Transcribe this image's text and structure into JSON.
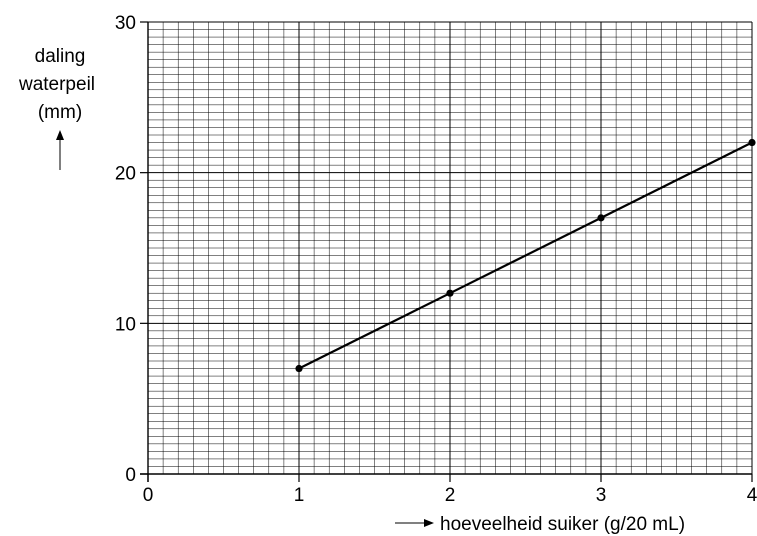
{
  "chart_data": {
    "type": "line",
    "title": "",
    "ylabel": [
      "daling",
      "waterpeil",
      "(mm)"
    ],
    "xlabel": "hoeveelheid suiker (g/20 mL)",
    "xlim": [
      0,
      4
    ],
    "ylim": [
      0,
      30
    ],
    "x_ticks": [
      "0",
      "1",
      "2",
      "3",
      "4"
    ],
    "y_ticks": [
      "0",
      "10",
      "20",
      "30"
    ],
    "grid": true,
    "x_minor_step": 0.1,
    "y_minor_step": 0.5,
    "series": [
      {
        "x": [
          1,
          2,
          3,
          4
        ],
        "y": [
          7,
          12,
          17,
          22
        ]
      }
    ]
  }
}
